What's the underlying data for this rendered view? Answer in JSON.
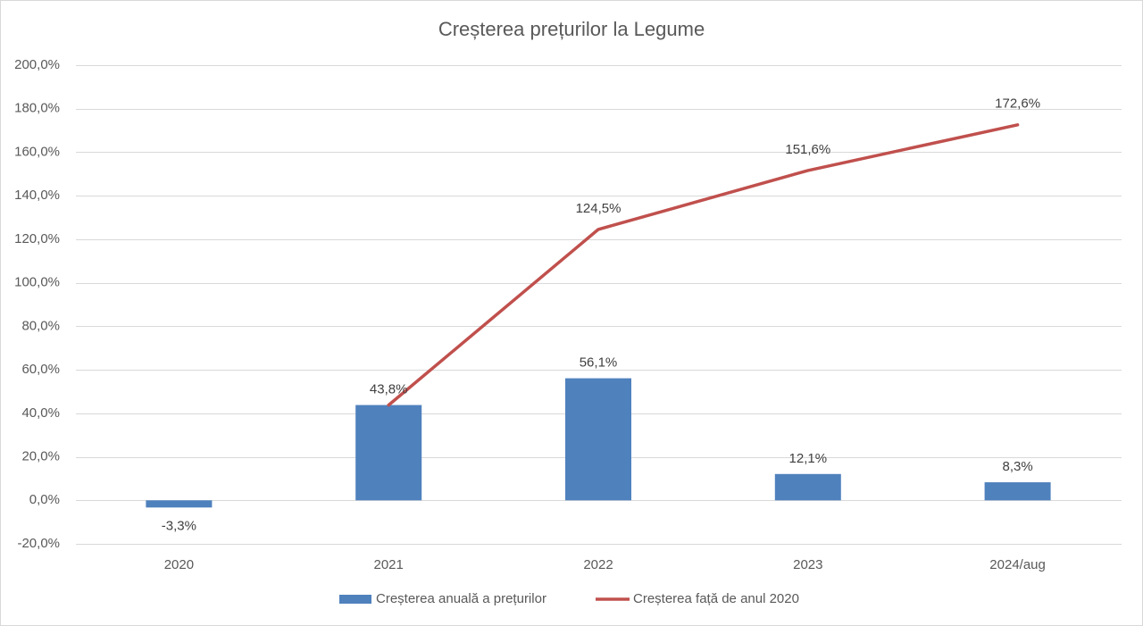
{
  "chart_data": {
    "type": "bar",
    "title": "Creșterea prețurilor la Legume",
    "categories": [
      "2020",
      "2021",
      "2022",
      "2023",
      "2024/aug"
    ],
    "series": [
      {
        "name": "Creșterea anuală a prețurilor",
        "type": "bar",
        "color": "#4F81BD",
        "values": [
          -3.3,
          43.8,
          56.1,
          12.1,
          8.3
        ],
        "labels": [
          "-3,3%",
          "43,8%",
          "56,1%",
          "12,1%",
          "8,3%"
        ]
      },
      {
        "name": "Creșterea față de anul 2020",
        "type": "line",
        "color": "#C0504D",
        "values": [
          null,
          43.8,
          124.5,
          151.6,
          172.6
        ],
        "labels": [
          null,
          null,
          "124,5%",
          "151,6%",
          "172,6%"
        ]
      }
    ],
    "ylim": [
      -20,
      200
    ],
    "yticks": [
      -20,
      0,
      20,
      40,
      60,
      80,
      100,
      120,
      140,
      160,
      180,
      200
    ],
    "ytick_labels": [
      "-20,0%",
      "0,0%",
      "20,0%",
      "40,0%",
      "60,0%",
      "80,0%",
      "100,0%",
      "120,0%",
      "140,0%",
      "160,0%",
      "180,0%",
      "200,0%"
    ],
    "grid": true,
    "legend_position": "bottom"
  }
}
